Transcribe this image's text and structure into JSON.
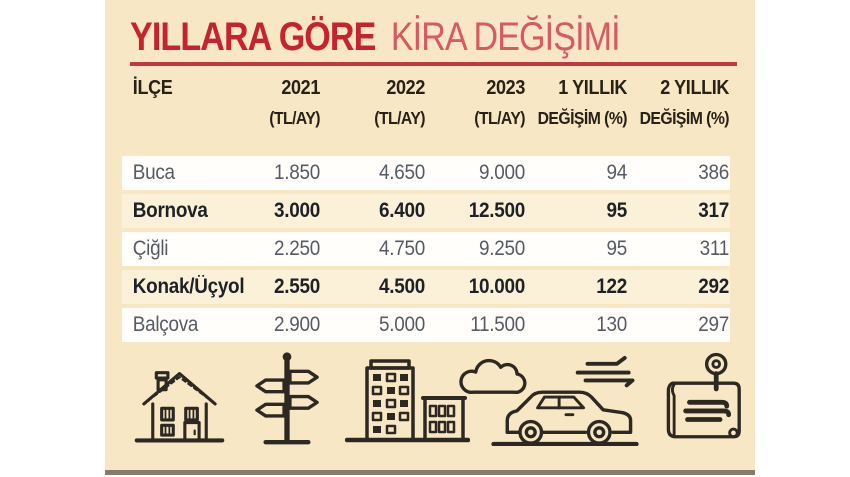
{
  "title": {
    "bold": "YILLARA GÖRE",
    "regular": "KİRA DEĞİŞİMİ"
  },
  "colors": {
    "accent": "#c5242e",
    "accent-light": "#d65a60",
    "rule": "#bf3a3f",
    "panel-bg": "#f8e7c4",
    "row-bg": "#fffefa",
    "row-hl": "#fbf1d8",
    "header-text": "#272118",
    "row-text": "#555a64",
    "row-text-bold": "#1e2126",
    "icon": "#2d2822",
    "shadow": "#847d6d"
  },
  "chart_data": {
    "type": "table",
    "title": "YILLARA GÖRE KİRA DEĞİŞİMİ",
    "columns": [
      {
        "line1": "İLÇE",
        "line2": ""
      },
      {
        "line1": "2021",
        "line2": "(TL/AY)"
      },
      {
        "line1": "2022",
        "line2": "(TL/AY)"
      },
      {
        "line1": "2023",
        "line2": "(TL/AY)"
      },
      {
        "line1": "1 YILLIK",
        "line2": "DEĞİŞİM (%)"
      },
      {
        "line1": "2 YILLIK",
        "line2": "DEĞİŞİM (%)"
      }
    ],
    "rows": [
      {
        "district": "Buca",
        "y2021": "1.850",
        "y2022": "4.650",
        "y2023": "9.000",
        "change1y": "94",
        "change2y": "386",
        "highlight": false
      },
      {
        "district": "Bornova",
        "y2021": "3.000",
        "y2022": "6.400",
        "y2023": "12.500",
        "change1y": "95",
        "change2y": "317",
        "highlight": true
      },
      {
        "district": "Çiğli",
        "y2021": "2.250",
        "y2022": "4.750",
        "y2023": "9.250",
        "change1y": "95",
        "change2y": "311",
        "highlight": false
      },
      {
        "district": "Konak/Üçyol",
        "y2021": "2.550",
        "y2022": "4.500",
        "y2023": "10.000",
        "change1y": "122",
        "change2y": "292",
        "highlight": true
      },
      {
        "district": "Balçova",
        "y2021": "2.900",
        "y2022": "5.000",
        "y2023": "11.500",
        "change1y": "130",
        "change2y": "297",
        "highlight": false
      }
    ],
    "number_format": "TL, Turkish thousands separator (dot)"
  },
  "icons": [
    "house-icon",
    "signpost-icon",
    "city-buildings-icon",
    "cloud-icon",
    "car-icon",
    "map-with-pin-icon"
  ]
}
